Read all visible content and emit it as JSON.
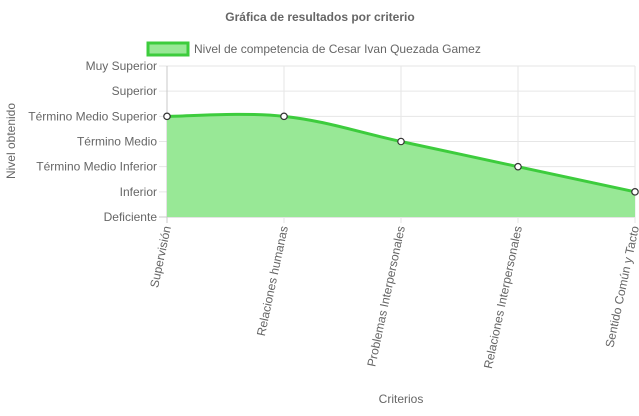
{
  "chart_data": {
    "type": "area",
    "title": "Gráfica de resultados por criterio",
    "xlabel": "Criterios",
    "ylabel": "Nivel obtenido",
    "categories": [
      "Supervisión",
      "Relaciones humanas",
      "Problemas Interpersonales",
      "Relaciones Interpersonales",
      "Sentido Común y Tacto"
    ],
    "y_levels": [
      "Deficiente",
      "Inferior",
      "Término Medio Inferior",
      "Término Medio",
      "Término Medio Superior",
      "Superior",
      "Muy Superior"
    ],
    "ylim": [
      0,
      6
    ],
    "series": [
      {
        "name": "Nivel de competencia de Cesar Ivan Quezada Gamez",
        "values": [
          4,
          4,
          3,
          2,
          1
        ]
      }
    ],
    "legend_position": "top",
    "grid": true,
    "colors": {
      "fill": "#98e896",
      "line": "#3dcc3d",
      "point_fill": "#ffffff",
      "point_stroke": "#333333"
    }
  }
}
